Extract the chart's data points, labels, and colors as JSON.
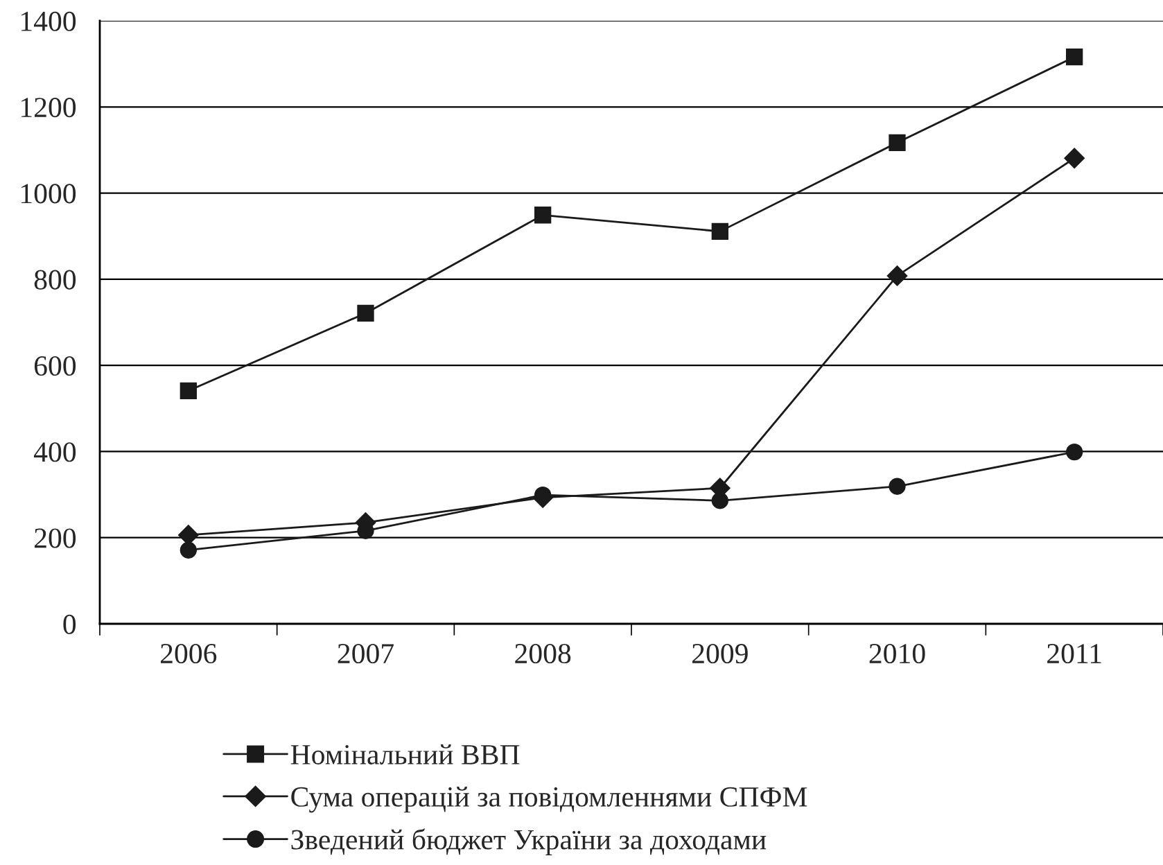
{
  "chart_data": {
    "type": "line",
    "categories": [
      "2006",
      "2007",
      "2008",
      "2009",
      "2010",
      "2011"
    ],
    "series": [
      {
        "name": "Номінальний ВВП",
        "color": "#1a1a1a",
        "marker": "square",
        "values": [
          541,
          721,
          949,
          911,
          1117,
          1316
        ]
      },
      {
        "name": "Сума операцій за повідомленнями СПФМ",
        "color": "#1a1a1a",
        "marker": "diamond",
        "values": [
          206,
          235,
          293,
          315,
          808,
          1081
        ]
      },
      {
        "name": "Зведений бюджет України за доходами",
        "color": "#1a1a1a",
        "marker": "circle",
        "values": [
          171,
          216,
          299,
          286,
          319,
          399
        ]
      }
    ],
    "ylim": [
      0,
      1400
    ],
    "yticks": [
      0,
      200,
      400,
      600,
      800,
      1000,
      1200,
      1400
    ],
    "grid": "y",
    "legend": "bottom",
    "line_style": "solid"
  }
}
